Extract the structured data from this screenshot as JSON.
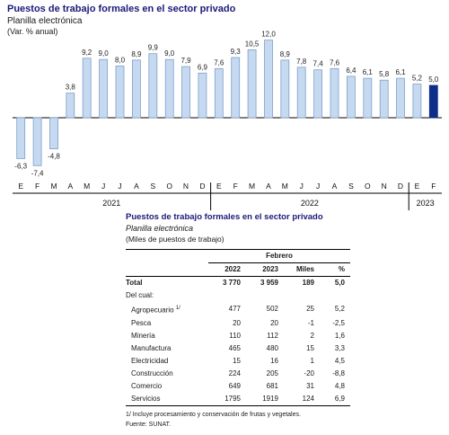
{
  "chart_data": {
    "type": "bar",
    "title": "Puestos de trabajo formales en el sector privado",
    "subtitle": "Planilla electrónica",
    "unit": "(Var. % anual)",
    "categories": [
      "E",
      "F",
      "M",
      "A",
      "M",
      "J",
      "J",
      "A",
      "S",
      "O",
      "N",
      "D",
      "E",
      "F",
      "M",
      "A",
      "M",
      "J",
      "J",
      "A",
      "S",
      "O",
      "N",
      "D",
      "E",
      "F"
    ],
    "years": [
      {
        "label": "2021",
        "start": 0,
        "end": 11
      },
      {
        "label": "2022",
        "start": 12,
        "end": 23
      },
      {
        "label": "2023",
        "start": 24,
        "end": 25
      }
    ],
    "values": [
      -6.3,
      -7.4,
      -4.8,
      3.8,
      9.2,
      9.0,
      8.0,
      8.9,
      9.9,
      9.0,
      7.9,
      6.9,
      7.6,
      9.3,
      10.5,
      12.0,
      8.9,
      7.8,
      7.4,
      7.6,
      6.4,
      6.1,
      5.8,
      6.1,
      5.2,
      5.0
    ],
    "value_labels": [
      "-6,3",
      "-7,4",
      "-4,8",
      "3,8",
      "9,2",
      "9,0",
      "8,0",
      "8,9",
      "9,9",
      "9,0",
      "7,9",
      "6,9",
      "7,6",
      "9,3",
      "10,5",
      "12,0",
      "8,9",
      "7,8",
      "7,4",
      "7,6",
      "6,4",
      "6,1",
      "5,8",
      "6,1",
      "5,2",
      "5,0"
    ],
    "highlight_index": 25,
    "colors": {
      "bar": "#c5d9f1",
      "bar_stroke": "#7f9fc8",
      "highlight": "#0d2f8a"
    },
    "ylim": [
      -9,
      13
    ]
  },
  "table": {
    "title": "Puestos de trabajo formales en el sector privado",
    "subtitle": "Planilla electrónica",
    "unit": "(Miles de puestos de trabajo)",
    "period": "Febrero",
    "col_2022": "2022",
    "col_2023": "2023",
    "col_miles": "Miles",
    "col_pct": "%",
    "total": {
      "label": "Total",
      "v2022": "3 770",
      "v2023": "3 959",
      "miles": "189",
      "pct": "5,0"
    },
    "delcual": "Del cual:",
    "rows": [
      {
        "label": "Agropecuario",
        "note": "1/",
        "v2022": "477",
        "v2023": "502",
        "miles": "25",
        "pct": "5,2"
      },
      {
        "label": "Pesca",
        "note": "",
        "v2022": "20",
        "v2023": "20",
        "miles": "-1",
        "pct": "-2,5"
      },
      {
        "label": "Minería",
        "note": "",
        "v2022": "110",
        "v2023": "112",
        "miles": "2",
        "pct": "1,6"
      },
      {
        "label": "Manufactura",
        "note": "",
        "v2022": "465",
        "v2023": "480",
        "miles": "15",
        "pct": "3,3"
      },
      {
        "label": "Electricidad",
        "note": "",
        "v2022": "15",
        "v2023": "16",
        "miles": "1",
        "pct": "4,5"
      },
      {
        "label": "Construcción",
        "note": "",
        "v2022": "224",
        "v2023": "205",
        "miles": "-20",
        "pct": "-8,8"
      },
      {
        "label": "Comercio",
        "note": "",
        "v2022": "649",
        "v2023": "681",
        "miles": "31",
        "pct": "4,8"
      },
      {
        "label": "Servicios",
        "note": "",
        "v2022": "1795",
        "v2023": "1919",
        "miles": "124",
        "pct": "6,9"
      }
    ],
    "footnote": "1/ Incluye procesamiento y conservación de frutas y vegetales.",
    "source": "Fuente: SUNAT."
  }
}
